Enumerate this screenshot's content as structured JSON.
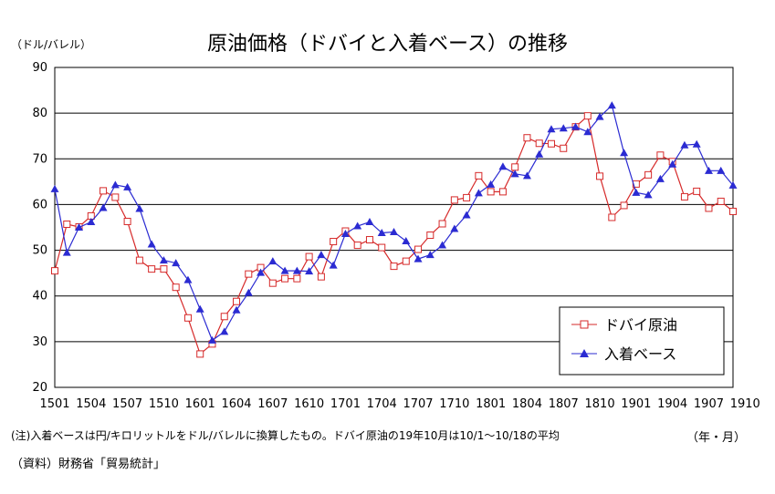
{
  "chart_data": {
    "type": "line",
    "title": "原油価格（ドバイと入着ベース）の推移",
    "ylabel": "（ドル/バレル）",
    "xlabel": "（年・月）",
    "ylim": [
      20,
      90
    ],
    "yticks": [
      20,
      30,
      40,
      50,
      60,
      70,
      80,
      90
    ],
    "x_tick_labels": [
      "1501",
      "1504",
      "1507",
      "1510",
      "1601",
      "1604",
      "1607",
      "1610",
      "1701",
      "1704",
      "1707",
      "1710",
      "1801",
      "1804",
      "1807",
      "1810",
      "1901",
      "1904",
      "1907",
      "1910"
    ],
    "grid": true,
    "legend_position": "bottom-right",
    "colors": {
      "dubai": "#d62a2a",
      "arrival": "#2b2bd2"
    },
    "series": [
      {
        "name": "ドバイ原油",
        "marker": "square",
        "values": [
          45.5,
          55.7,
          55.1,
          57.5,
          63.0,
          61.6,
          56.3,
          47.8,
          45.9,
          45.9,
          41.9,
          35.2,
          27.3,
          29.5,
          35.5,
          38.8,
          44.8,
          46.2,
          42.8,
          43.8,
          43.8,
          48.6,
          44.2,
          51.9,
          54.2,
          51.1,
          52.3,
          50.6,
          46.5,
          47.6,
          50.2,
          53.3,
          55.8,
          61.0,
          61.5,
          66.3,
          62.8,
          62.8,
          68.2,
          74.6,
          73.4,
          73.3,
          72.3,
          77.0,
          79.4,
          66.2,
          57.2,
          59.8,
          64.5,
          66.5,
          70.8,
          69.4,
          61.7,
          62.9,
          59.2,
          60.7,
          58.5
        ]
      },
      {
        "name": "入着ベース",
        "marker": "triangle",
        "values": [
          63.4,
          49.5,
          55.0,
          56.2,
          59.3,
          64.3,
          63.8,
          59.1,
          51.3,
          47.8,
          47.2,
          43.5,
          37.1,
          30.3,
          32.2,
          36.9,
          40.7,
          45.1,
          47.6,
          45.5,
          45.5,
          45.4,
          49.0,
          46.7,
          53.6,
          55.3,
          56.2,
          53.8,
          54.0,
          52.0,
          48.1,
          49.0,
          51.1,
          54.7,
          57.7,
          62.5,
          64.4,
          68.3,
          66.7,
          66.3,
          71.0,
          76.5,
          76.7,
          77.0,
          75.9,
          79.2,
          81.7,
          71.3,
          62.6,
          62.1,
          65.6,
          68.8,
          73.0,
          73.2,
          67.4,
          67.4,
          64.2
        ]
      }
    ]
  },
  "notes": {
    "footnote": "(注)入着ベースは円/キロリットルをドル/バレルに換算したもの。ドバイ原油の19年10月は10/1～10/18の平均",
    "source": "（資料）財務省「貿易統計」"
  }
}
